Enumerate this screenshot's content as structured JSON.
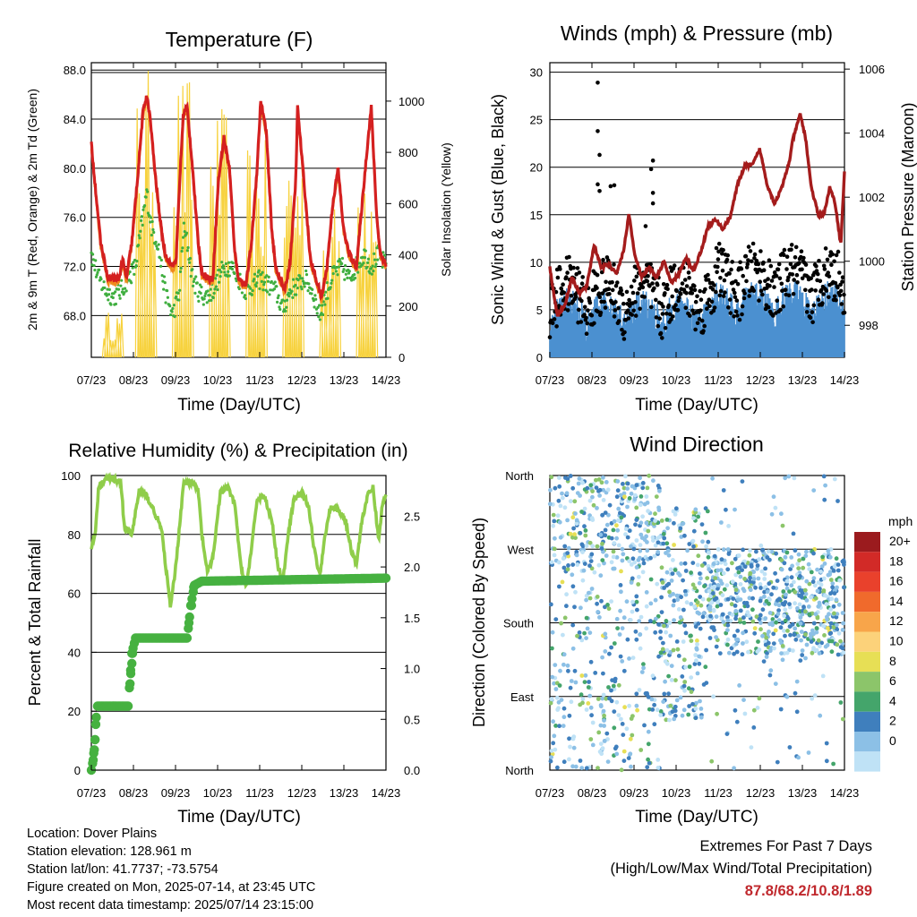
{
  "x_tick_labels": [
    "07/23",
    "08/23",
    "09/23",
    "10/23",
    "11/23",
    "12/23",
    "13/23",
    "14/23"
  ],
  "colors": {
    "temp_2m": "#d42020",
    "temp_9m": "#f08a1c",
    "dewpoint": "#3fae3f",
    "solar": "#f7d23e",
    "wind": "#4b90d0",
    "gust": "#000000",
    "pressure": "#a41c1c",
    "humidity": "#8fcd4a",
    "precip": "#46b140"
  },
  "info": {
    "location": "Location: Dover Plains",
    "elevation": "Station elevation: 128.961 m",
    "latlon": "Station lat/lon: 41.7737; -73.5754",
    "created": "Figure created on Mon, 2025-07-14, at 23:45 UTC",
    "recent": "Most recent data timestamp: 2025/07/14 23:15:00"
  },
  "extremes": {
    "title": "Extremes For Past 7 Days",
    "subtitle": "(High/Low/Max Wind/Total Precipitation)",
    "values": "87.8/68.2/10.8/1.89"
  },
  "chart_data": [
    {
      "type": "line",
      "title": "Temperature (F)",
      "xlabel": "Time (Day/UTC)",
      "ylabel": "2m & 9m T (Red, Orange) & 2m Td (Green)",
      "ylabel_right": "Solar Insolation (Yellow)",
      "ylim": [
        64.6,
        88.6
      ],
      "yticks": [
        "68.0",
        "72.0",
        "76.0",
        "80.0",
        "84.0",
        "88.0"
      ],
      "ylim_right": [
        0,
        1150
      ],
      "yticks_right": [
        "0",
        "200",
        "400",
        "600",
        "800",
        "1000"
      ],
      "grid": true,
      "series": [
        {
          "color_key": "temp_2m",
          "values": [
            [
              0,
              82
            ],
            [
              0.25,
              74
            ],
            [
              0.45,
              71
            ],
            [
              0.6,
              71
            ],
            [
              0.75,
              71
            ],
            [
              0.85,
              72.6
            ],
            [
              0.95,
              71
            ],
            [
              1.1,
              74
            ],
            [
              1.25,
              79
            ],
            [
              1.4,
              84.5
            ],
            [
              1.5,
              86
            ],
            [
              1.6,
              84
            ],
            [
              1.75,
              79
            ],
            [
              1.9,
              75
            ],
            [
              2,
              73
            ],
            [
              2.2,
              72
            ],
            [
              2.3,
              72.5
            ],
            [
              2.4,
              79
            ],
            [
              2.5,
              84.5
            ],
            [
              2.6,
              85
            ],
            [
              2.75,
              80
            ],
            [
              2.9,
              74
            ],
            [
              3,
              71.5
            ],
            [
              3.2,
              71
            ],
            [
              3.3,
              71
            ],
            [
              3.45,
              79
            ],
            [
              3.6,
              82.5
            ],
            [
              3.75,
              80
            ],
            [
              3.9,
              73
            ],
            [
              4,
              71
            ],
            [
              4.2,
              70.5
            ],
            [
              4.35,
              74
            ],
            [
              4.5,
              80
            ],
            [
              4.6,
              85.5
            ],
            [
              4.75,
              83
            ],
            [
              4.9,
              75
            ],
            [
              5,
              72
            ],
            [
              5.25,
              70
            ],
            [
              5.4,
              72.5
            ],
            [
              5.55,
              79
            ],
            [
              5.6,
              85
            ],
            [
              5.8,
              78
            ],
            [
              5.95,
              72.5
            ],
            [
              6.1,
              71
            ],
            [
              6.25,
              69.5
            ],
            [
              6.4,
              72
            ],
            [
              6.55,
              77
            ],
            [
              6.7,
              80
            ],
            [
              6.85,
              75
            ],
            [
              7,
              73
            ],
            [
              7.2,
              72
            ],
            [
              7.35,
              77
            ],
            [
              7.5,
              82
            ],
            [
              7.6,
              85
            ],
            [
              7.75,
              76
            ],
            [
              7.85,
              73
            ],
            [
              7.95,
              72.5
            ],
            [
              8,
              72
            ]
          ]
        },
        {
          "color_key": "dewpoint",
          "values": [
            [
              0,
              73
            ],
            [
              0.2,
              71
            ],
            [
              0.4,
              70
            ],
            [
              0.6,
              69.5
            ],
            [
              0.8,
              70
            ],
            [
              1,
              71
            ],
            [
              1.2,
              72
            ],
            [
              1.35,
              75
            ],
            [
              1.5,
              78
            ],
            [
              1.65,
              75
            ],
            [
              1.8,
              74
            ],
            [
              2,
              70
            ],
            [
              2.2,
              68
            ],
            [
              2.4,
              70
            ],
            [
              2.5,
              75
            ],
            [
              2.6,
              74
            ],
            [
              2.75,
              71
            ],
            [
              2.9,
              70
            ],
            [
              3.1,
              69.5
            ],
            [
              3.3,
              70
            ],
            [
              3.45,
              71
            ],
            [
              3.6,
              72
            ],
            [
              3.8,
              72
            ],
            [
              4,
              71
            ],
            [
              4.2,
              70
            ],
            [
              4.4,
              70.5
            ],
            [
              4.6,
              71
            ],
            [
              4.8,
              70.5
            ],
            [
              5,
              70
            ],
            [
              5.2,
              68.5
            ],
            [
              5.4,
              70
            ],
            [
              5.6,
              70.5
            ],
            [
              5.8,
              71
            ],
            [
              6,
              70
            ],
            [
              6.2,
              68
            ],
            [
              6.4,
              70
            ],
            [
              6.6,
              71.5
            ],
            [
              6.8,
              72
            ],
            [
              7,
              71
            ],
            [
              7.2,
              72
            ],
            [
              7.4,
              73
            ],
            [
              7.6,
              72
            ],
            [
              7.8,
              73
            ],
            [
              8,
              72
            ]
          ]
        },
        {
          "color_key": "solar",
          "peaks": [
            [
              0.6,
              180
            ],
            [
              1.5,
              1130
            ],
            [
              2.5,
              1120
            ],
            [
              3.5,
              980
            ],
            [
              4.5,
              850
            ],
            [
              5.5,
              850
            ],
            [
              6.5,
              600
            ],
            [
              7.5,
              900
            ]
          ]
        }
      ]
    },
    {
      "type": "scatter",
      "title": "Winds (mph) & Pressure (mb)",
      "xlabel": "Time (Day/UTC)",
      "ylabel": "Sonic Wind & Gust (Blue, Black)",
      "ylabel_right": "Station Pressure (Maroon)",
      "ylim": [
        0,
        31
      ],
      "yticks": [
        "0",
        "5",
        "10",
        "15",
        "20",
        "25",
        "30"
      ],
      "ylim_right": [
        997,
        1006.2
      ],
      "yticks_right": [
        "998",
        "1000",
        "1002",
        "1004",
        "1006"
      ],
      "grid": true,
      "series": [
        {
          "name": "Station Pressure",
          "color_key": "pressure",
          "values": [
            [
              0,
              999.8
            ],
            [
              0.2,
              998.3
            ],
            [
              0.4,
              998.6
            ],
            [
              0.6,
              999.5
            ],
            [
              0.8,
              999
            ],
            [
              1,
              999.2
            ],
            [
              1.2,
              1000.5
            ],
            [
              1.4,
              999.8
            ],
            [
              1.6,
              999.9
            ],
            [
              1.8,
              999.6
            ],
            [
              2,
              1000.3
            ],
            [
              2.15,
              1001.5
            ],
            [
              2.3,
              1000.2
            ],
            [
              2.5,
              999.5
            ],
            [
              2.7,
              999.8
            ],
            [
              2.9,
              999.5
            ],
            [
              3.1,
              1000
            ],
            [
              3.3,
              999.3
            ],
            [
              3.5,
              999.6
            ],
            [
              3.7,
              1000.1
            ],
            [
              3.9,
              999.7
            ],
            [
              4.1,
              1000.3
            ],
            [
              4.3,
              1001.1
            ],
            [
              4.5,
              1001.3
            ],
            [
              4.7,
              1001
            ],
            [
              4.9,
              1001.4
            ],
            [
              5.1,
              1002.4
            ],
            [
              5.3,
              1003
            ],
            [
              5.5,
              1003
            ],
            [
              5.7,
              1003.5
            ],
            [
              5.9,
              1002.4
            ],
            [
              6.1,
              1001.8
            ],
            [
              6.3,
              1002.3
            ],
            [
              6.5,
              1003.1
            ],
            [
              6.6,
              1003.8
            ],
            [
              6.8,
              1004.6
            ],
            [
              6.95,
              1003.8
            ],
            [
              7.1,
              1002.3
            ],
            [
              7.3,
              1001.4
            ],
            [
              7.45,
              1001.5
            ],
            [
              7.6,
              1002.3
            ],
            [
              7.75,
              1001.8
            ],
            [
              7.9,
              1000.5
            ],
            [
              8,
              1002.8
            ]
          ]
        },
        {
          "name": "Gust",
          "color_key": "gust",
          "note": "dots 0-15 mph, outliers up to 29"
        },
        {
          "name": "Sonic Wind",
          "color_key": "wind",
          "note": "0-8 mph"
        }
      ]
    },
    {
      "type": "line",
      "title": "Relative Humidity (%) & Precipitation (in)",
      "xlabel": "Time (Day/UTC)",
      "ylabel": "Percent & Total Rainfall",
      "ylim": [
        0,
        100
      ],
      "yticks": [
        "0",
        "20",
        "40",
        "60",
        "80",
        "100"
      ],
      "ylim_right": [
        0,
        2.9
      ],
      "yticks_right": [
        "0.0",
        "0.5",
        "1.0",
        "1.5",
        "2.0",
        "2.5"
      ],
      "grid": true,
      "series": [
        {
          "name": "Relative Humidity",
          "color_key": "humidity",
          "values": [
            [
              0,
              75
            ],
            [
              0.1,
              80
            ],
            [
              0.2,
              96
            ],
            [
              0.4,
              99
            ],
            [
              0.6,
              99
            ],
            [
              0.8,
              98
            ],
            [
              0.9,
              82
            ],
            [
              1.1,
              80
            ],
            [
              1.3,
              95
            ],
            [
              1.5,
              93
            ],
            [
              1.7,
              88
            ],
            [
              1.9,
              82
            ],
            [
              2.05,
              66
            ],
            [
              2.15,
              55
            ],
            [
              2.3,
              70
            ],
            [
              2.5,
              97
            ],
            [
              2.7,
              98
            ],
            [
              2.9,
              95
            ],
            [
              3,
              80
            ],
            [
              3.15,
              67
            ],
            [
              3.3,
              72
            ],
            [
              3.5,
              94
            ],
            [
              3.7,
              96
            ],
            [
              3.9,
              90
            ],
            [
              4.05,
              70
            ],
            [
              4.2,
              62
            ],
            [
              4.35,
              75
            ],
            [
              4.5,
              92
            ],
            [
              4.7,
              93
            ],
            [
              4.9,
              85
            ],
            [
              5.05,
              70
            ],
            [
              5.2,
              64
            ],
            [
              5.35,
              80
            ],
            [
              5.5,
              92
            ],
            [
              5.7,
              94
            ],
            [
              5.9,
              90
            ],
            [
              6.05,
              75
            ],
            [
              6.2,
              66
            ],
            [
              6.35,
              80
            ],
            [
              6.5,
              90
            ],
            [
              6.7,
              88
            ],
            [
              6.9,
              85
            ],
            [
              7.05,
              75
            ],
            [
              7.2,
              70
            ],
            [
              7.35,
              85
            ],
            [
              7.5,
              93
            ],
            [
              7.65,
              96
            ],
            [
              7.8,
              78
            ],
            [
              7.9,
              90
            ],
            [
              8,
              93
            ]
          ]
        },
        {
          "name": "Total Rainfall",
          "color_key": "precip",
          "values": [
            [
              0,
              0
            ],
            [
              0.05,
              0.1
            ],
            [
              0.1,
              0.3
            ],
            [
              0.15,
              0.63
            ],
            [
              1,
              0.63
            ],
            [
              1.05,
              0.9
            ],
            [
              1.1,
              1.15
            ],
            [
              1.2,
              1.3
            ],
            [
              2.6,
              1.3
            ],
            [
              2.62,
              1.35
            ],
            [
              2.7,
              1.62
            ],
            [
              2.8,
              1.82
            ],
            [
              3,
              1.86
            ],
            [
              8,
              1.89
            ]
          ]
        }
      ]
    },
    {
      "type": "scatter",
      "title": "Wind Direction",
      "xlabel": "Time (Day/UTC)",
      "ylabel": "Direction (Colored By Speed)",
      "ylim": [
        0,
        360
      ],
      "yticks": [
        "North",
        "East",
        "South",
        "West",
        "North"
      ],
      "grid": true,
      "legend": {
        "title": "mph",
        "position": "right",
        "labels": [
          "20+",
          "18",
          "16",
          "14",
          "12",
          "10",
          "8",
          "6",
          "4",
          "2",
          "0"
        ],
        "colors": [
          "#9b1b1e",
          "#d22a27",
          "#e9412c",
          "#f06a2c",
          "#f8a54a",
          "#fcd27a",
          "#e7df55",
          "#8cc56a",
          "#44a56b",
          "#3f7fbd",
          "#8cc0e6",
          "#bfe2f6"
        ]
      }
    }
  ]
}
